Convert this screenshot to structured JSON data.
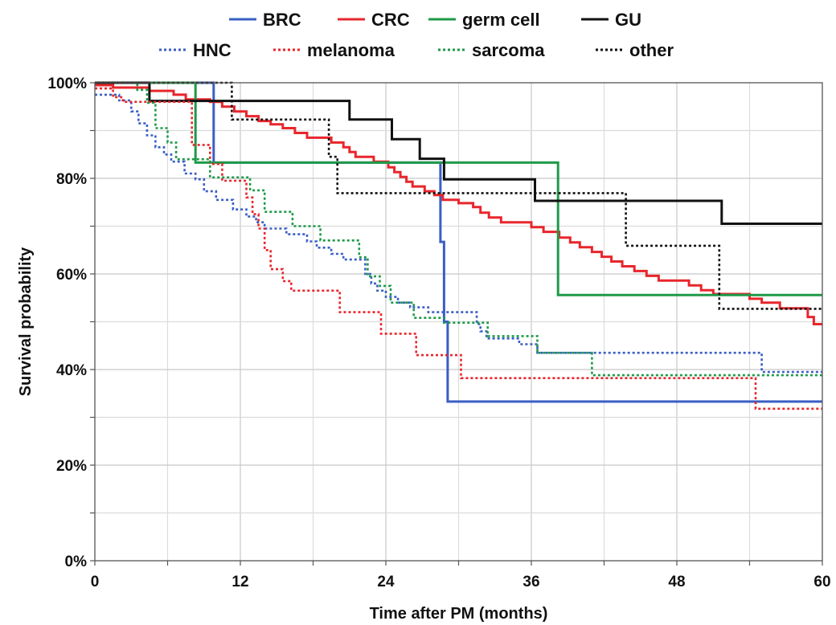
{
  "chart_data": {
    "type": "line",
    "title": "",
    "xlabel": "Time after PM (months)",
    "ylabel": "Survival probability",
    "xlim": [
      0,
      60
    ],
    "ylim": [
      0,
      100
    ],
    "x_ticks": [
      0,
      12,
      24,
      36,
      48,
      60
    ],
    "y_ticks": [
      0,
      20,
      40,
      60,
      80,
      100
    ],
    "x_tick_labels": [
      "0",
      "12",
      "24",
      "36",
      "48",
      "60"
    ],
    "y_tick_labels": [
      "0%",
      "20%",
      "40%",
      "60%",
      "80%",
      "100%"
    ],
    "grid": true,
    "step": true,
    "legend_placement": "top",
    "series": [
      {
        "name": "BRC",
        "color": "#3a5fc4",
        "dash": "solid",
        "points": [
          [
            0,
            100
          ],
          [
            9.8,
            100
          ],
          [
            9.8,
            83.3
          ],
          [
            28.5,
            83.3
          ],
          [
            28.5,
            66.7
          ],
          [
            28.8,
            66.7
          ],
          [
            28.8,
            50
          ],
          [
            29.1,
            50
          ],
          [
            29.1,
            33.3
          ],
          [
            60,
            33.3
          ]
        ]
      },
      {
        "name": "CRC",
        "color": "#e8262c",
        "dash": "solid",
        "points": [
          [
            0,
            99.5
          ],
          [
            1.5,
            99.5
          ],
          [
            1.5,
            99
          ],
          [
            4.5,
            99
          ],
          [
            4.5,
            98.3
          ],
          [
            6.5,
            98.3
          ],
          [
            6.5,
            97.5
          ],
          [
            7.5,
            97.5
          ],
          [
            7.5,
            96.5
          ],
          [
            9.5,
            96.5
          ],
          [
            9.5,
            96
          ],
          [
            10.5,
            96
          ],
          [
            10.5,
            95
          ],
          [
            11.5,
            95
          ],
          [
            11.5,
            94
          ],
          [
            12.5,
            94
          ],
          [
            12.5,
            93
          ],
          [
            13.5,
            93
          ],
          [
            13.5,
            92
          ],
          [
            14.5,
            92
          ],
          [
            14.5,
            91.3
          ],
          [
            15.5,
            91.3
          ],
          [
            15.5,
            90.5
          ],
          [
            16.5,
            90.5
          ],
          [
            16.5,
            89.5
          ],
          [
            17.5,
            89.5
          ],
          [
            17.5,
            88.5
          ],
          [
            19.5,
            88.5
          ],
          [
            19.5,
            87.5
          ],
          [
            20.5,
            87.5
          ],
          [
            20.5,
            86.5
          ],
          [
            21,
            86.5
          ],
          [
            21,
            85.5
          ],
          [
            21.5,
            85.5
          ],
          [
            21.5,
            84.5
          ],
          [
            23,
            84.5
          ],
          [
            23,
            83.5
          ],
          [
            24.2,
            83.5
          ],
          [
            24.2,
            82.3
          ],
          [
            24.7,
            82.3
          ],
          [
            24.7,
            81.3
          ],
          [
            25.2,
            81.3
          ],
          [
            25.2,
            80.3
          ],
          [
            25.7,
            80.3
          ],
          [
            25.7,
            79.3
          ],
          [
            26.2,
            79.3
          ],
          [
            26.2,
            78.3
          ],
          [
            27.2,
            78.3
          ],
          [
            27.2,
            77.3
          ],
          [
            28,
            77.3
          ],
          [
            28,
            76.5
          ],
          [
            28.7,
            76.5
          ],
          [
            28.7,
            75.5
          ],
          [
            30,
            75.5
          ],
          [
            30,
            74.8
          ],
          [
            31.2,
            74.8
          ],
          [
            31.2,
            74
          ],
          [
            31.8,
            74
          ],
          [
            31.8,
            72.8
          ],
          [
            32.5,
            72.8
          ],
          [
            32.5,
            71.8
          ],
          [
            33.5,
            71.8
          ],
          [
            33.5,
            70.8
          ],
          [
            36,
            70.8
          ],
          [
            36,
            69.8
          ],
          [
            37,
            69.8
          ],
          [
            37,
            68.8
          ],
          [
            38.3,
            68.8
          ],
          [
            38.3,
            67.6
          ],
          [
            39.2,
            67.6
          ],
          [
            39.2,
            66.6
          ],
          [
            40,
            66.6
          ],
          [
            40,
            65.6
          ],
          [
            41,
            65.6
          ],
          [
            41,
            64.6
          ],
          [
            41.8,
            64.6
          ],
          [
            41.8,
            63.6
          ],
          [
            42.6,
            63.6
          ],
          [
            42.6,
            62.6
          ],
          [
            43.5,
            62.6
          ],
          [
            43.5,
            61.6
          ],
          [
            44.5,
            61.6
          ],
          [
            44.5,
            60.6
          ],
          [
            45.5,
            60.6
          ],
          [
            45.5,
            59.6
          ],
          [
            46.5,
            59.6
          ],
          [
            46.5,
            58.6
          ],
          [
            49,
            58.6
          ],
          [
            49,
            57.6
          ],
          [
            50,
            57.6
          ],
          [
            50,
            56.6
          ],
          [
            51,
            56.6
          ],
          [
            51,
            55.8
          ],
          [
            54,
            55.8
          ],
          [
            54,
            54.8
          ],
          [
            55,
            54.8
          ],
          [
            55,
            54
          ],
          [
            56.5,
            54
          ],
          [
            56.5,
            52.8
          ],
          [
            58.8,
            52.8
          ],
          [
            58.8,
            51
          ],
          [
            59.3,
            51
          ],
          [
            59.3,
            49.5
          ],
          [
            60,
            49.5
          ]
        ]
      },
      {
        "name": "germ cell",
        "color": "#1e9a48",
        "dash": "solid",
        "points": [
          [
            0,
            100
          ],
          [
            8.3,
            100
          ],
          [
            8.3,
            83.3
          ],
          [
            38.2,
            83.3
          ],
          [
            38.2,
            55.6
          ],
          [
            60,
            55.6
          ]
        ]
      },
      {
        "name": "GU",
        "color": "#111111",
        "dash": "solid",
        "points": [
          [
            0,
            100
          ],
          [
            4.5,
            100
          ],
          [
            4.5,
            96.2
          ],
          [
            21,
            96.2
          ],
          [
            21,
            92.3
          ],
          [
            24.5,
            92.3
          ],
          [
            24.5,
            88.2
          ],
          [
            26.8,
            88.2
          ],
          [
            26.8,
            84.1
          ],
          [
            28.8,
            84.1
          ],
          [
            28.8,
            79.8
          ],
          [
            36.3,
            79.8
          ],
          [
            36.3,
            75.3
          ],
          [
            51.7,
            75.3
          ],
          [
            51.7,
            70.5
          ],
          [
            60,
            70.5
          ]
        ]
      },
      {
        "name": "HNC",
        "color": "#3a5fc4",
        "dash": "dotted",
        "points": [
          [
            0,
            97.5
          ],
          [
            2,
            97.5
          ],
          [
            2,
            96.3
          ],
          [
            3,
            96.3
          ],
          [
            3,
            94
          ],
          [
            3.6,
            94
          ],
          [
            3.6,
            91.5
          ],
          [
            4.3,
            91.5
          ],
          [
            4.3,
            89
          ],
          [
            5,
            89
          ],
          [
            5,
            86.5
          ],
          [
            5.7,
            86.5
          ],
          [
            5.7,
            85
          ],
          [
            6.3,
            85
          ],
          [
            6.3,
            83.5
          ],
          [
            7.4,
            83.5
          ],
          [
            7.4,
            81
          ],
          [
            8.3,
            81
          ],
          [
            8.3,
            79.8
          ],
          [
            9,
            79.8
          ],
          [
            9,
            77.3
          ],
          [
            10,
            77.3
          ],
          [
            10,
            75.5
          ],
          [
            11.4,
            75.5
          ],
          [
            11.4,
            73.5
          ],
          [
            12.5,
            73.5
          ],
          [
            12.5,
            72
          ],
          [
            13.3,
            72
          ],
          [
            13.3,
            70.8
          ],
          [
            14,
            70.8
          ],
          [
            14,
            69.5
          ],
          [
            15.8,
            69.5
          ],
          [
            15.8,
            68.3
          ],
          [
            17.5,
            68.3
          ],
          [
            17.5,
            66.8
          ],
          [
            18.3,
            66.8
          ],
          [
            18.3,
            65.5
          ],
          [
            19.5,
            65.5
          ],
          [
            19.5,
            64.2
          ],
          [
            20.5,
            64.2
          ],
          [
            20.5,
            63
          ],
          [
            22.3,
            63
          ],
          [
            22.3,
            60
          ],
          [
            22.8,
            60
          ],
          [
            22.8,
            58
          ],
          [
            23.3,
            58
          ],
          [
            23.3,
            56.5
          ],
          [
            24,
            56.5
          ],
          [
            24,
            55.2
          ],
          [
            25,
            55.2
          ],
          [
            25,
            54
          ],
          [
            26,
            54
          ],
          [
            26,
            53
          ],
          [
            27.5,
            53
          ],
          [
            27.5,
            52
          ],
          [
            31.5,
            52
          ],
          [
            31.5,
            49.5
          ],
          [
            31.8,
            49.5
          ],
          [
            31.8,
            48
          ],
          [
            32.3,
            48
          ],
          [
            32.3,
            46.5
          ],
          [
            35,
            46.5
          ],
          [
            35,
            45.3
          ],
          [
            36.5,
            45.3
          ],
          [
            36.5,
            43.5
          ],
          [
            55,
            43.5
          ],
          [
            55,
            39.5
          ],
          [
            60,
            39.5
          ]
        ]
      },
      {
        "name": "melanoma",
        "color": "#e8262c",
        "dash": "dotted",
        "points": [
          [
            0,
            98.8
          ],
          [
            1.5,
            98.8
          ],
          [
            1.5,
            97
          ],
          [
            2.3,
            97
          ],
          [
            2.3,
            96
          ],
          [
            8,
            96
          ],
          [
            8,
            87
          ],
          [
            9.5,
            87
          ],
          [
            9.5,
            83
          ],
          [
            10.5,
            83
          ],
          [
            10.5,
            79.5
          ],
          [
            12.5,
            79.5
          ],
          [
            12.5,
            76
          ],
          [
            13,
            76
          ],
          [
            13,
            72.5
          ],
          [
            13.5,
            72.5
          ],
          [
            13.5,
            69.5
          ],
          [
            14,
            69.5
          ],
          [
            14,
            65
          ],
          [
            14.5,
            65
          ],
          [
            14.5,
            61
          ],
          [
            15.5,
            61
          ],
          [
            15.5,
            58.5
          ],
          [
            16.2,
            58.5
          ],
          [
            16.2,
            56.5
          ],
          [
            20.2,
            56.5
          ],
          [
            20.2,
            52
          ],
          [
            23.6,
            52
          ],
          [
            23.6,
            47.5
          ],
          [
            26.5,
            47.5
          ],
          [
            26.5,
            43
          ],
          [
            30.2,
            43
          ],
          [
            30.2,
            38.2
          ],
          [
            54.5,
            38.2
          ],
          [
            54.5,
            31.8
          ],
          [
            60,
            31.8
          ]
        ]
      },
      {
        "name": "sarcoma",
        "color": "#1e9a48",
        "dash": "dotted",
        "points": [
          [
            0,
            100
          ],
          [
            3.5,
            100
          ],
          [
            3.5,
            98.5
          ],
          [
            4.3,
            98.5
          ],
          [
            4.3,
            95.8
          ],
          [
            5,
            95.8
          ],
          [
            5,
            90.5
          ],
          [
            6,
            90.5
          ],
          [
            6,
            87.5
          ],
          [
            6.7,
            87.5
          ],
          [
            6.7,
            84
          ],
          [
            9.5,
            84
          ],
          [
            9.5,
            80.2
          ],
          [
            12.8,
            80.2
          ],
          [
            12.8,
            77.5
          ],
          [
            14,
            77.5
          ],
          [
            14,
            73
          ],
          [
            16.3,
            73
          ],
          [
            16.3,
            70
          ],
          [
            18.6,
            70
          ],
          [
            18.6,
            67
          ],
          [
            21.8,
            67
          ],
          [
            21.8,
            63.5
          ],
          [
            22.5,
            63.5
          ],
          [
            22.5,
            59.5
          ],
          [
            23.5,
            59.5
          ],
          [
            23.5,
            57.5
          ],
          [
            24.4,
            57.5
          ],
          [
            24.4,
            54
          ],
          [
            26.3,
            54
          ],
          [
            26.3,
            50.8
          ],
          [
            28.8,
            50.8
          ],
          [
            28.8,
            49.8
          ],
          [
            32.4,
            49.8
          ],
          [
            32.4,
            47
          ],
          [
            36.5,
            47
          ],
          [
            36.5,
            43.5
          ],
          [
            41,
            43.5
          ],
          [
            41,
            38.8
          ],
          [
            60,
            38.8
          ]
        ]
      },
      {
        "name": "other",
        "color": "#111111",
        "dash": "dotted",
        "points": [
          [
            0,
            100
          ],
          [
            11.3,
            100
          ],
          [
            11.3,
            92.3
          ],
          [
            19.3,
            92.3
          ],
          [
            19.3,
            84.5
          ],
          [
            20,
            84.5
          ],
          [
            20,
            76.9
          ],
          [
            43.8,
            76.9
          ],
          [
            43.8,
            65.9
          ],
          [
            51.5,
            65.9
          ],
          [
            51.5,
            52.7
          ],
          [
            60,
            52.7
          ]
        ]
      }
    ]
  }
}
